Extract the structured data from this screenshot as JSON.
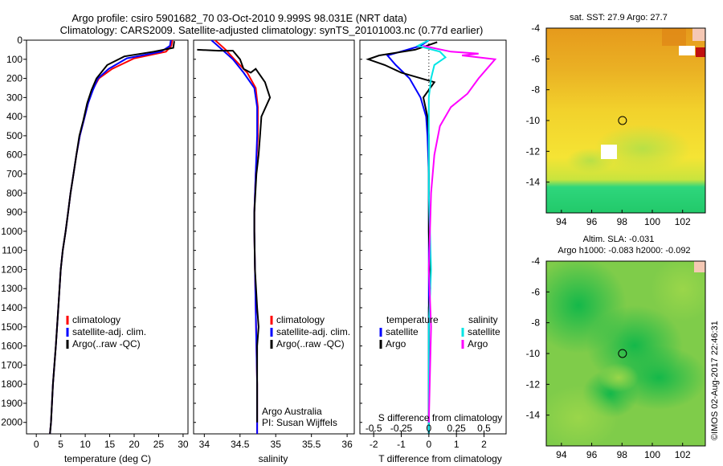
{
  "header": {
    "line1": "Argo profile: csiro 5901682_70 03-Oct-2010 9.999S 98.031E (NRT data)",
    "line2": "Climatology: CARS2009. Satellite-adjusted climatology: synTS_20101003.nc (0.77d earlier)"
  },
  "colors": {
    "climatology": "#ff0000",
    "satellite": "#0000ff",
    "argo": "#000000",
    "sal_satellite": "#00e5e5",
    "sal_argo": "#ff00ff"
  },
  "chart_data": [
    {
      "type": "line",
      "id": "temperature",
      "xlabel": "temperature (deg C)",
      "ylabel": "",
      "xlim": [
        -2,
        31
      ],
      "ylim": [
        2060,
        0
      ],
      "xticks": [
        "0",
        "5",
        "10",
        "15",
        "20",
        "25",
        "30"
      ],
      "yticks": [
        "0",
        "100",
        "200",
        "300",
        "400",
        "500",
        "600",
        "700",
        "800",
        "900",
        "1000",
        "1100",
        "1200",
        "1300",
        "1400",
        "1500",
        "1600",
        "1700",
        "1800",
        "1900",
        "2000"
      ],
      "legend": [
        "climatology",
        "satellite-adj. clim.",
        "Argo(..raw -QC)"
      ],
      "series": [
        {
          "name": "climatology",
          "points": [
            [
              27.8,
              0
            ],
            [
              27.6,
              30
            ],
            [
              26.5,
              60
            ],
            [
              20,
              95
            ],
            [
              15.5,
              150
            ],
            [
              12.8,
              200
            ],
            [
              11.5,
              260
            ],
            [
              10.6,
              330
            ],
            [
              9.7,
              420
            ],
            [
              8.9,
              500
            ],
            [
              8.2,
              600
            ],
            [
              7.6,
              700
            ],
            [
              7.0,
              800
            ],
            [
              6.5,
              900
            ],
            [
              6.0,
              1000
            ],
            [
              5.4,
              1100
            ],
            [
              5.0,
              1200
            ],
            [
              4.5,
              1400
            ],
            [
              4.0,
              1600
            ],
            [
              3.4,
              1800
            ],
            [
              3.0,
              2000
            ],
            [
              2.8,
              2060
            ]
          ]
        },
        {
          "name": "satellite-adj. clim.",
          "points": [
            [
              27.5,
              0
            ],
            [
              27.3,
              30
            ],
            [
              25.5,
              60
            ],
            [
              18.5,
              95
            ],
            [
              14.8,
              150
            ],
            [
              12.6,
              200
            ],
            [
              11.6,
              260
            ],
            [
              10.6,
              330
            ],
            [
              9.7,
              420
            ],
            [
              8.9,
              500
            ],
            [
              8.2,
              600
            ],
            [
              7.6,
              700
            ],
            [
              7.0,
              800
            ],
            [
              6.5,
              900
            ],
            [
              6.0,
              1000
            ],
            [
              5.4,
              1100
            ],
            [
              5.0,
              1200
            ],
            [
              4.5,
              1400
            ],
            [
              4.0,
              1600
            ],
            [
              3.4,
              1800
            ],
            [
              3.0,
              2000
            ],
            [
              2.8,
              2060
            ]
          ]
        },
        {
          "name": "Argo(..raw -QC)",
          "points": [
            [
              28.2,
              5
            ],
            [
              28,
              40
            ],
            [
              24,
              60
            ],
            [
              18,
              85
            ],
            [
              14.5,
              130
            ],
            [
              12.3,
              200
            ],
            [
              11.3,
              260
            ],
            [
              10.4,
              330
            ],
            [
              9.6,
              420
            ],
            [
              8.8,
              500
            ],
            [
              8.2,
              600
            ],
            [
              7.6,
              700
            ],
            [
              7.0,
              800
            ],
            [
              6.5,
              900
            ],
            [
              6.0,
              1000
            ],
            [
              5.4,
              1100
            ],
            [
              5.0,
              1200
            ],
            [
              4.5,
              1400
            ],
            [
              4.0,
              1600
            ],
            [
              3.4,
              1800
            ],
            [
              3.0,
              2000
            ],
            [
              2.8,
              2060
            ]
          ]
        }
      ]
    },
    {
      "type": "line",
      "id": "salinity",
      "xlabel": "salinity",
      "xlim": [
        33.85,
        36.1
      ],
      "ylim": [
        2060,
        0
      ],
      "xticks": [
        "34",
        "34.5",
        "35",
        "35.5",
        "36"
      ],
      "legend": [
        "climatology",
        "satellite-adj. clim.",
        "Argo(..raw -QC)"
      ],
      "annotations": [
        "Argo Australia",
        "PI: Susan Wijffels"
      ],
      "series": [
        {
          "name": "climatology",
          "points": [
            [
              34.15,
              0
            ],
            [
              34.3,
              50
            ],
            [
              34.42,
              100
            ],
            [
              34.6,
              170
            ],
            [
              34.72,
              250
            ],
            [
              34.75,
              350
            ],
            [
              34.75,
              500
            ],
            [
              34.72,
              700
            ],
            [
              34.7,
              900
            ],
            [
              34.7,
              1000
            ],
            [
              34.71,
              1200
            ],
            [
              34.72,
              1400
            ],
            [
              34.73,
              1600
            ],
            [
              34.74,
              1800
            ],
            [
              34.74,
              2060
            ]
          ]
        },
        {
          "name": "satellite-adj. clim.",
          "points": [
            [
              34.1,
              0
            ],
            [
              34.25,
              50
            ],
            [
              34.4,
              100
            ],
            [
              34.55,
              170
            ],
            [
              34.7,
              250
            ],
            [
              34.74,
              350
            ],
            [
              34.74,
              500
            ],
            [
              34.72,
              700
            ],
            [
              34.7,
              900
            ],
            [
              34.7,
              1000
            ],
            [
              34.71,
              1200
            ],
            [
              34.72,
              1400
            ],
            [
              34.73,
              1600
            ],
            [
              34.74,
              1800
            ],
            [
              34.74,
              2060
            ]
          ]
        },
        {
          "name": "Argo(..raw -QC)",
          "points": [
            [
              33.9,
              50
            ],
            [
              34.2,
              55
            ],
            [
              34.4,
              55
            ],
            [
              34.5,
              100
            ],
            [
              34.55,
              150
            ],
            [
              34.65,
              170
            ],
            [
              34.72,
              150
            ],
            [
              34.85,
              220
            ],
            [
              34.92,
              300
            ],
            [
              34.8,
              400
            ],
            [
              34.78,
              500
            ],
            [
              34.76,
              600
            ],
            [
              34.73,
              700
            ],
            [
              34.7,
              900
            ],
            [
              34.7,
              1000
            ],
            [
              34.71,
              1200
            ],
            [
              34.74,
              1400
            ],
            [
              34.76,
              1500
            ],
            [
              34.74,
              1600
            ],
            [
              34.74,
              1800
            ],
            [
              34.74,
              2000
            ]
          ]
        }
      ]
    },
    {
      "type": "line",
      "id": "difference",
      "xlabel": "T difference from climatology",
      "xlabel_top": "S difference from climatology",
      "xlim": [
        -2.5,
        2.8
      ],
      "ylim": [
        2060,
        0
      ],
      "xticks_T": [
        "-2",
        "-1",
        "0",
        "1",
        "2"
      ],
      "xticks_S": [
        "-0.5",
        "-0.25",
        "0",
        "0.25",
        "0.5"
      ],
      "legend_titles": [
        "temperature",
        "salinity"
      ],
      "legend_T": [
        "satellite",
        "Argo"
      ],
      "legend_S": [
        "satellite",
        "Argo"
      ],
      "series": [
        {
          "name": "T satellite",
          "points": [
            [
              0,
              0
            ],
            [
              -0.3,
              30
            ],
            [
              -1.5,
              80
            ],
            [
              -1.2,
              130
            ],
            [
              -0.7,
              200
            ],
            [
              -0.3,
              300
            ],
            [
              -0.1,
              400
            ],
            [
              -0.05,
              500
            ],
            [
              0,
              700
            ],
            [
              0,
              1000
            ],
            [
              0,
              2060
            ]
          ]
        },
        {
          "name": "T Argo",
          "points": [
            [
              0.3,
              10
            ],
            [
              -0.5,
              50
            ],
            [
              -1.8,
              80
            ],
            [
              -2.2,
              100
            ],
            [
              -1.6,
              130
            ],
            [
              -1.0,
              170
            ],
            [
              0.2,
              220
            ],
            [
              -0.2,
              300
            ],
            [
              -0.05,
              400
            ],
            [
              0,
              500
            ],
            [
              0,
              700
            ],
            [
              0,
              1000
            ],
            [
              0.05,
              1300
            ],
            [
              0,
              1400
            ],
            [
              0,
              2060
            ]
          ]
        },
        {
          "name": "S satellite",
          "points": [
            [
              0,
              0
            ],
            [
              -0.1,
              30
            ],
            [
              0.1,
              60
            ],
            [
              0.15,
              90
            ],
            [
              0.05,
              130
            ],
            [
              0.02,
              200
            ],
            [
              0,
              300
            ],
            [
              0,
              500
            ],
            [
              0,
              800
            ],
            [
              0.02,
              1200
            ],
            [
              0,
              1500
            ],
            [
              0,
              2060
            ]
          ]
        },
        {
          "name": "S Argo",
          "points": [
            [
              -0.05,
              30
            ],
            [
              0.2,
              60
            ],
            [
              0.45,
              70
            ],
            [
              0.3,
              80
            ],
            [
              0.6,
              100
            ],
            [
              0.45,
              200
            ],
            [
              0.35,
              280
            ],
            [
              0.2,
              350
            ],
            [
              0.1,
              450
            ],
            [
              0.05,
              600
            ],
            [
              0.02,
              800
            ],
            [
              0.01,
              1000
            ],
            [
              0,
              1200
            ],
            [
              0.02,
              1500
            ],
            [
              0,
              2000
            ]
          ]
        }
      ]
    },
    {
      "type": "heatmap",
      "id": "sst_map",
      "title": "sat. SST: 27.9 Argo: 27.7",
      "xlim": [
        93,
        103.5
      ],
      "ylim": [
        -16,
        -4
      ],
      "xticks": [
        "94",
        "96",
        "98",
        "100",
        "102"
      ],
      "yticks": [
        "-4",
        "-6",
        "-8",
        "-10",
        "-12",
        "-14"
      ],
      "marker": [
        98.031,
        -9.999
      ]
    },
    {
      "type": "heatmap",
      "id": "sla_map",
      "title": "Altim. SLA: -0.031",
      "subtitle": "Argo h1000: -0.083 h2000: -0.092",
      "xlim": [
        93,
        103.5
      ],
      "ylim": [
        -16,
        -4
      ],
      "xticks": [
        "94",
        "96",
        "98",
        "100",
        "102"
      ],
      "yticks": [
        "-4",
        "-6",
        "-8",
        "-10",
        "-12",
        "-14"
      ],
      "marker": [
        98.031,
        -9.999
      ]
    }
  ],
  "footer": {
    "stamp": "©IMOS 02-Aug-2017 22:46:31"
  }
}
